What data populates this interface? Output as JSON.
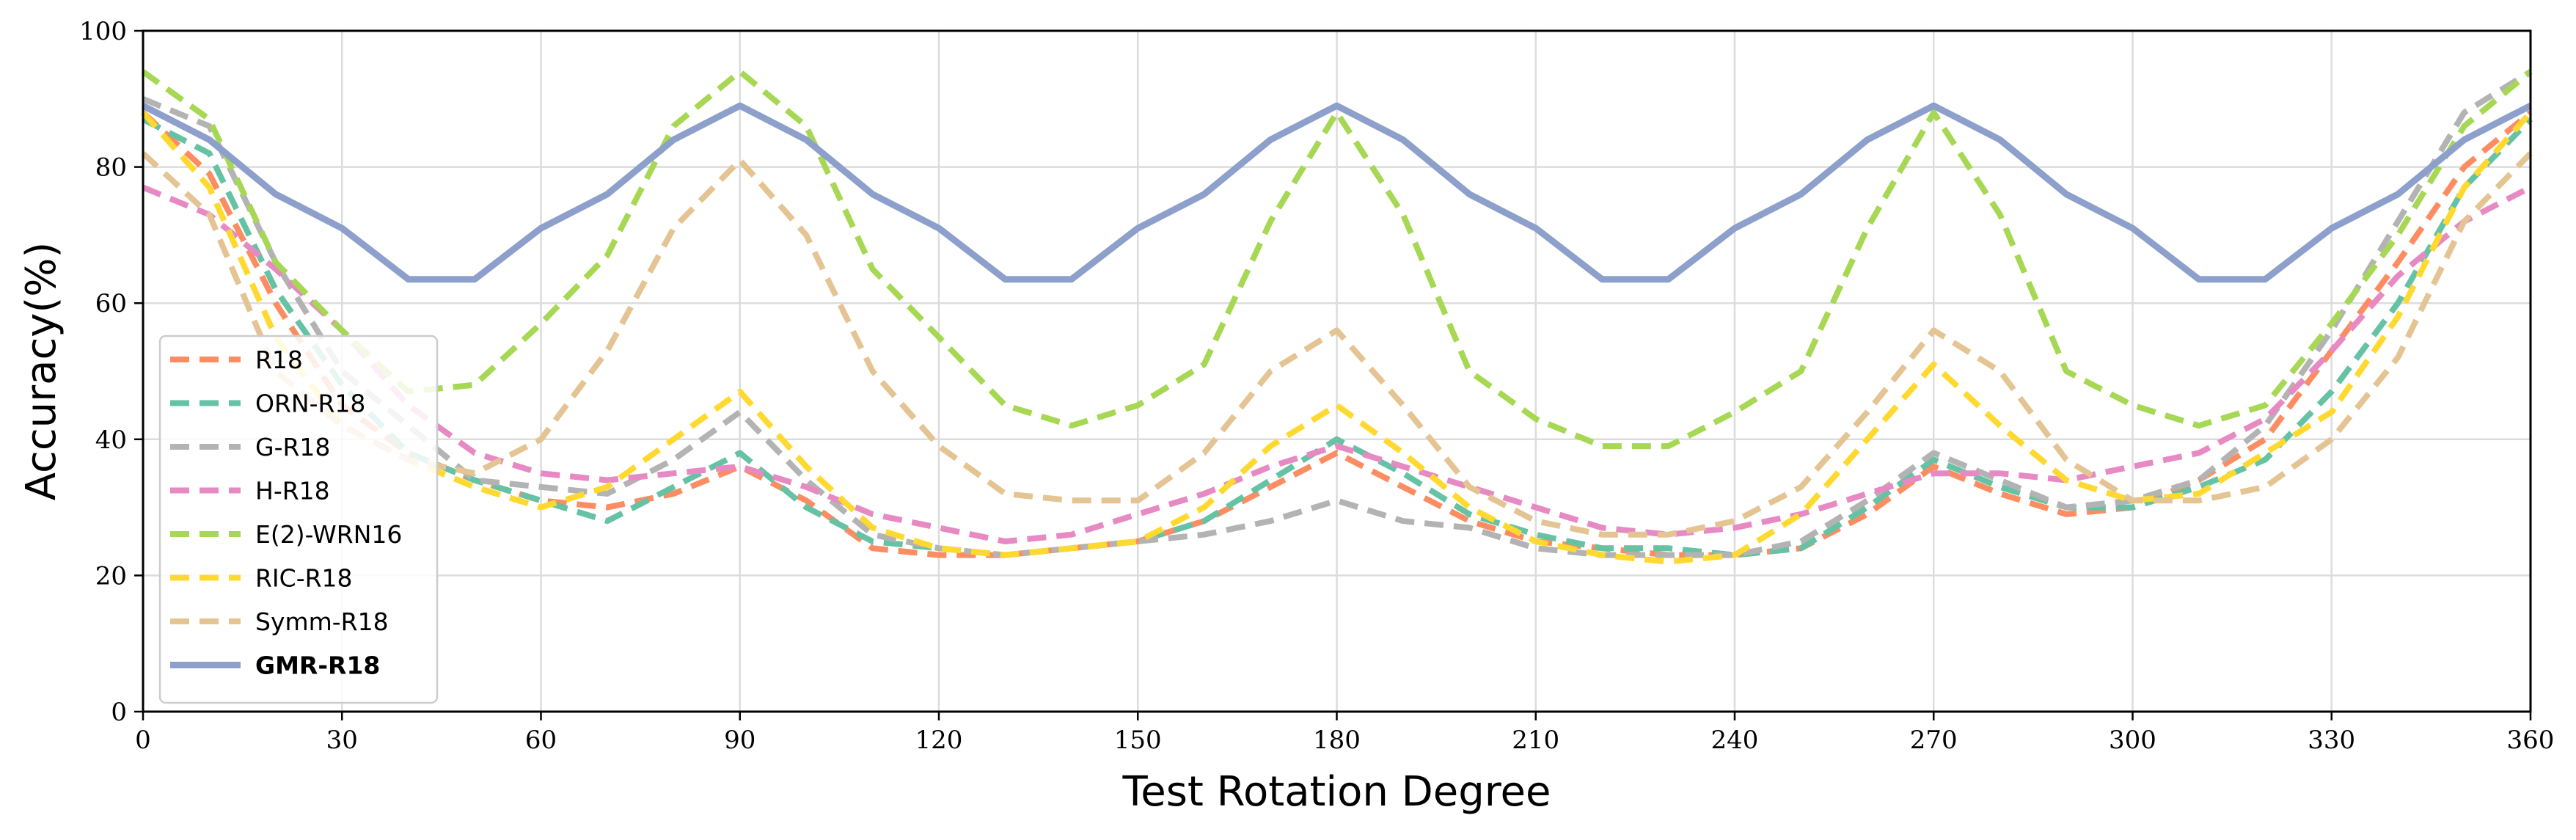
{
  "chart_data": {
    "type": "line",
    "title": "",
    "xlabel": "Test Rotation Degree",
    "ylabel": "Accuracy(%)",
    "xlim": [
      0,
      360
    ],
    "ylim": [
      0,
      100
    ],
    "x_ticks": [
      0,
      30,
      60,
      90,
      120,
      150,
      180,
      210,
      240,
      270,
      300,
      330,
      360
    ],
    "y_ticks": [
      0,
      20,
      40,
      60,
      80,
      100
    ],
    "grid": true,
    "legend_position": "center-left",
    "x": [
      0,
      10,
      20,
      30,
      40,
      50,
      60,
      70,
      80,
      90,
      100,
      110,
      120,
      130,
      140,
      150,
      160,
      170,
      180,
      190,
      200,
      210,
      220,
      230,
      240,
      250,
      260,
      270,
      280,
      290,
      300,
      310,
      320,
      330,
      340,
      350,
      360
    ],
    "series": [
      {
        "name": "R18",
        "color": "#fc8d62",
        "style": "dashed",
        "values": [
          88,
          79,
          60,
          45,
          38,
          34,
          31,
          30,
          32,
          36,
          31,
          24,
          23,
          23,
          24,
          25,
          28,
          33,
          38,
          33,
          28,
          25,
          24,
          23,
          23,
          24,
          29,
          36,
          32,
          29,
          30,
          34,
          40,
          53,
          66,
          80,
          88
        ]
      },
      {
        "name": "ORN-R18",
        "color": "#66c2a5",
        "style": "dashed",
        "values": [
          87,
          82,
          62,
          48,
          38,
          34,
          31,
          28,
          33,
          38,
          30,
          25,
          24,
          23,
          24,
          25,
          28,
          34,
          40,
          35,
          29,
          26,
          24,
          24,
          23,
          24,
          30,
          37,
          33,
          30,
          30,
          33,
          37,
          47,
          60,
          77,
          87
        ]
      },
      {
        "name": "G-R18",
        "color": "#b3b3b3",
        "style": "dashed",
        "values": [
          90,
          86,
          66,
          50,
          42,
          34,
          33,
          32,
          37,
          44,
          34,
          26,
          24,
          23,
          24,
          25,
          26,
          28,
          31,
          28,
          27,
          24,
          23,
          23,
          23,
          25,
          31,
          38,
          34,
          30,
          31,
          34,
          42,
          56,
          72,
          88,
          94
        ]
      },
      {
        "name": "H-R18",
        "color": "#e78ac3",
        "style": "dashed",
        "values": [
          77,
          73,
          65,
          56,
          45,
          38,
          35,
          34,
          35,
          36,
          33,
          29,
          27,
          25,
          26,
          29,
          32,
          36,
          39,
          36,
          33,
          30,
          27,
          26,
          27,
          29,
          32,
          35,
          35,
          34,
          36,
          38,
          43,
          53,
          64,
          72,
          77
        ]
      },
      {
        "name": "E(2)-WRN16",
        "color": "#a6d854",
        "style": "dashed",
        "values": [
          94,
          87,
          66,
          56,
          47,
          48,
          57,
          67,
          86,
          94,
          86,
          65,
          55,
          45,
          42,
          45,
          51,
          72,
          88,
          73,
          50,
          43,
          39,
          39,
          44,
          50,
          71,
          88,
          73,
          50,
          45,
          42,
          45,
          57,
          70,
          86,
          94
        ]
      },
      {
        "name": "RIC-R18",
        "color": "#ffd92f",
        "style": "dashed",
        "values": [
          88,
          77,
          55,
          42,
          37,
          33,
          30,
          33,
          40,
          47,
          36,
          27,
          24,
          23,
          24,
          25,
          30,
          39,
          45,
          38,
          30,
          25,
          23,
          22,
          23,
          29,
          40,
          51,
          42,
          34,
          31,
          32,
          38,
          44,
          58,
          77,
          88
        ]
      },
      {
        "name": "Symm-R18",
        "color": "#e5c494",
        "style": "dashed",
        "values": [
          82,
          73,
          50,
          42,
          37,
          35,
          40,
          53,
          71,
          81,
          70,
          50,
          39,
          32,
          31,
          31,
          38,
          50,
          56,
          45,
          33,
          28,
          26,
          26,
          28,
          33,
          44,
          56,
          50,
          37,
          31,
          31,
          33,
          40,
          52,
          72,
          82
        ]
      },
      {
        "name": "GMR-R18",
        "color": "#8da0cb",
        "style": "solid",
        "bold": true,
        "values": [
          89,
          84,
          76,
          71,
          63.5,
          63.5,
          71,
          76,
          84,
          89,
          84,
          76,
          71,
          63.5,
          63.5,
          71,
          76,
          84,
          89,
          84,
          76,
          71,
          63.5,
          63.5,
          71,
          76,
          84,
          89,
          84,
          76,
          71,
          63.5,
          63.5,
          71,
          76,
          84,
          89
        ]
      }
    ]
  }
}
